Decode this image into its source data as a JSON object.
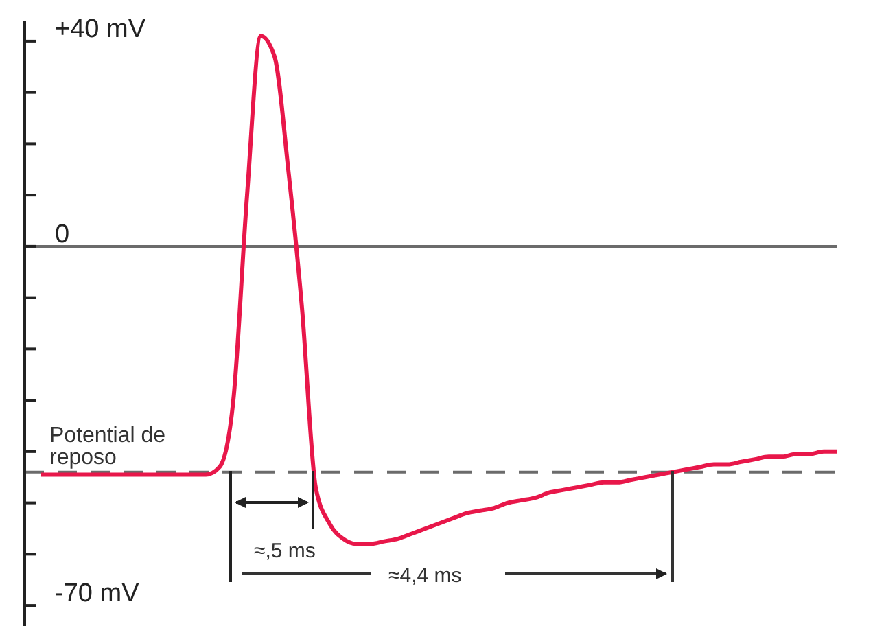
{
  "chart_data": {
    "type": "line",
    "categories": [
      null,
      null,
      null,
      null,
      null,
      null,
      null,
      null,
      null,
      null,
      null,
      null,
      null,
      null,
      null,
      null,
      null,
      null,
      null,
      null,
      null,
      null,
      null,
      null,
      null,
      null,
      null,
      null,
      null,
      null,
      null,
      null,
      null,
      null,
      null,
      null,
      null,
      null,
      null,
      null,
      null,
      null,
      null,
      null,
      null,
      null,
      null,
      null,
      null,
      null,
      null,
      null,
      null,
      null,
      null,
      null,
      null,
      null,
      null
    ],
    "series": [
      {
        "color": "#e8174a",
        "values": [
          -44.5,
          -44.5,
          -44.5,
          -44.5,
          -44.5,
          -44.5,
          -44.5,
          -44.5,
          -44.5,
          -44.5,
          -44.5,
          -44.5,
          -44.5,
          -43,
          -30,
          10,
          41,
          37,
          15,
          -12,
          -47,
          -54,
          -57,
          -58,
          -58,
          -57.5,
          -57,
          -56,
          -55,
          -54,
          -53,
          -52,
          -51.5,
          -51,
          -50,
          -49.5,
          -49,
          -48,
          -47.5,
          -47,
          -46.5,
          -46,
          -46,
          -45.5,
          -45,
          -44.5,
          -44,
          -43.5,
          -43,
          -42.5,
          -42.5,
          -42,
          -41.5,
          -41,
          -41,
          -40.5,
          -40.5,
          -40,
          -40
        ]
      }
    ],
    "ylim": [
      -74,
      44
    ],
    "yticks": [
      {
        "value": 40,
        "label": "+40 mV"
      },
      {
        "value": 30,
        "label": null
      },
      {
        "value": 20,
        "label": null
      },
      {
        "value": 10,
        "label": null
      },
      0,
      {
        "value": -10,
        "label": null
      },
      {
        "value": -20,
        "label": null
      },
      {
        "value": -30,
        "label": null
      },
      {
        "value": -40,
        "label": null
      },
      {
        "value": -50,
        "label": null
      },
      {
        "value": -60,
        "label": null
      },
      {
        "value": -70,
        "label": "-70 mV"
      }
    ],
    "tick_labels": "y",
    "marker": "none",
    "line_style": "solid",
    "ref_lines": [
      {
        "axis": "y",
        "value": 0,
        "label": null,
        "color": "#6b6b6b",
        "line_style": "solid"
      },
      {
        "axis": "y",
        "value": -44,
        "label": "Potential de reposo",
        "color": "#6b6b6b",
        "line_style": "dashed"
      }
    ],
    "annotations": [
      "≈,5 ms",
      "≈4,4 ms"
    ]
  }
}
